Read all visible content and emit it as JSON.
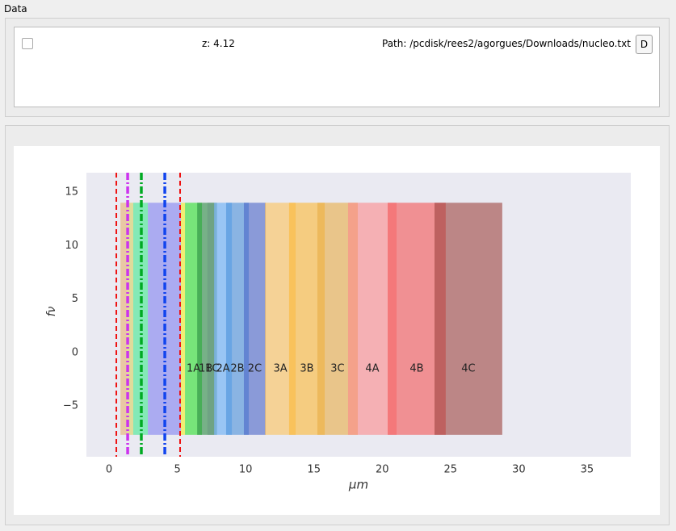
{
  "window": {
    "group_title": "Data",
    "z_label": "z: 4.12",
    "path_label": "Path: /pcdisk/rees2/agorgues/Downloads/nucleo.txt",
    "button": "D"
  },
  "chart_data": {
    "type": "span",
    "xlabel": "μm",
    "ylabel": "fν",
    "xlim": [
      -1.66,
      38.2
    ],
    "ylim": [
      -9.75,
      16.81
    ],
    "xticks": [
      0,
      5,
      10,
      15,
      20,
      25,
      30,
      35
    ],
    "yticks": [
      {
        "value": -5,
        "label": "−5"
      },
      0,
      5,
      10,
      15
    ],
    "band_y": [
      -7.7,
      14
    ],
    "bands": [
      {
        "x0": 0.83,
        "x1": 1.3,
        "color": "#e8b070"
      },
      {
        "x0": 1.3,
        "x1": 1.77,
        "color": "#d8d060"
      },
      {
        "x0": 1.77,
        "x1": 2.84,
        "color": "#40e890"
      },
      {
        "x0": 2.84,
        "x1": 5.26,
        "color": "#8080f0"
      },
      {
        "x0": 5.26,
        "x1": 5.56,
        "color": "#f0f020"
      },
      {
        "label": "1A",
        "x0": 5.56,
        "x1": 6.8,
        "color": "#29e029"
      },
      {
        "label": "1B",
        "x0": 6.45,
        "x1": 7.7,
        "color": "#2a8a40"
      },
      {
        "label": "1C",
        "x0": 7.2,
        "x1": 7.9,
        "color": "#6a9a80"
      },
      {
        "label": "2A",
        "x0": 7.69,
        "x1": 8.99,
        "color": "#63abf5"
      },
      {
        "label": "2B",
        "x0": 8.57,
        "x1": 10.23,
        "color": "#4a90d8"
      },
      {
        "label": "2C",
        "x0": 9.87,
        "x1": 11.47,
        "color": "#4a64c7"
      },
      {
        "label": "3A",
        "x0": 11.41,
        "x1": 13.66,
        "color": "#fbc258"
      },
      {
        "label": "3B",
        "x0": 13.18,
        "x1": 15.79,
        "color": "#fbb834"
      },
      {
        "label": "3C",
        "x0": 15.25,
        "x1": 18.21,
        "color": "#e7ab45"
      },
      {
        "label": "4A",
        "x0": 17.5,
        "x1": 21.05,
        "color": "#fb898b"
      },
      {
        "label": "4B",
        "x0": 20.4,
        "x1": 24.65,
        "color": "#f45454"
      },
      {
        "label": "4C",
        "x0": 23.83,
        "x1": 28.79,
        "color": "#9c423d"
      }
    ],
    "vlines": [
      {
        "x": 0.53,
        "color": "#ee1111",
        "style": "dashed"
      },
      {
        "x": 5.2,
        "color": "#ee1111",
        "style": "dashed"
      },
      {
        "x": 1.36,
        "color": "#cc33ee",
        "style": "dashdot"
      },
      {
        "x": 2.36,
        "color": "#00aa22",
        "style": "dashdot"
      },
      {
        "x": 4.08,
        "color": "#1144ee",
        "style": "dashdot"
      }
    ]
  }
}
